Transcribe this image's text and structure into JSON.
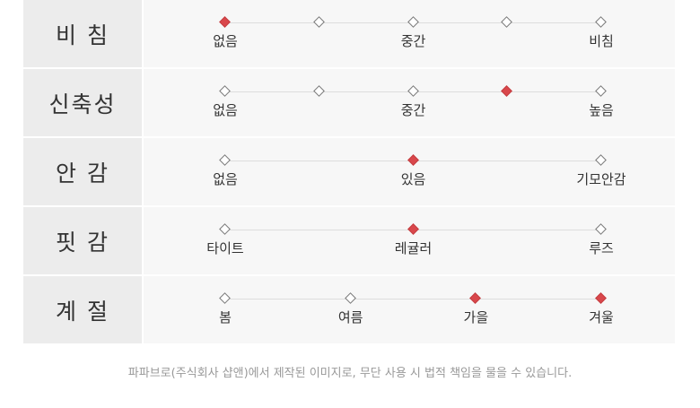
{
  "accent_color": "#d9474b",
  "rows": [
    {
      "label": "비 침",
      "points": [
        {
          "label": "없음",
          "selected": true
        },
        {
          "label": "",
          "selected": false
        },
        {
          "label": "중간",
          "selected": false
        },
        {
          "label": "",
          "selected": false
        },
        {
          "label": "비침",
          "selected": false
        }
      ]
    },
    {
      "label": "신축성",
      "points": [
        {
          "label": "없음",
          "selected": false
        },
        {
          "label": "",
          "selected": false
        },
        {
          "label": "중간",
          "selected": false
        },
        {
          "label": "",
          "selected": true
        },
        {
          "label": "높음",
          "selected": false
        }
      ]
    },
    {
      "label": "안 감",
      "points": [
        {
          "label": "없음",
          "selected": false
        },
        {
          "label": "있음",
          "selected": true
        },
        {
          "label": "기모안감",
          "selected": false
        }
      ]
    },
    {
      "label": "핏 감",
      "points": [
        {
          "label": "타이트",
          "selected": false
        },
        {
          "label": "레귤러",
          "selected": true
        },
        {
          "label": "루즈",
          "selected": false
        }
      ]
    },
    {
      "label": "계 절",
      "points": [
        {
          "label": "봄",
          "selected": false
        },
        {
          "label": "여름",
          "selected": false
        },
        {
          "label": "가을",
          "selected": true
        },
        {
          "label": "겨울",
          "selected": true
        }
      ]
    }
  ],
  "footer": "파파브로(주식회사 샵앤)에서 제작된 이미지로, 무단 사용 시 법적 책임을 물을 수 있습니다."
}
